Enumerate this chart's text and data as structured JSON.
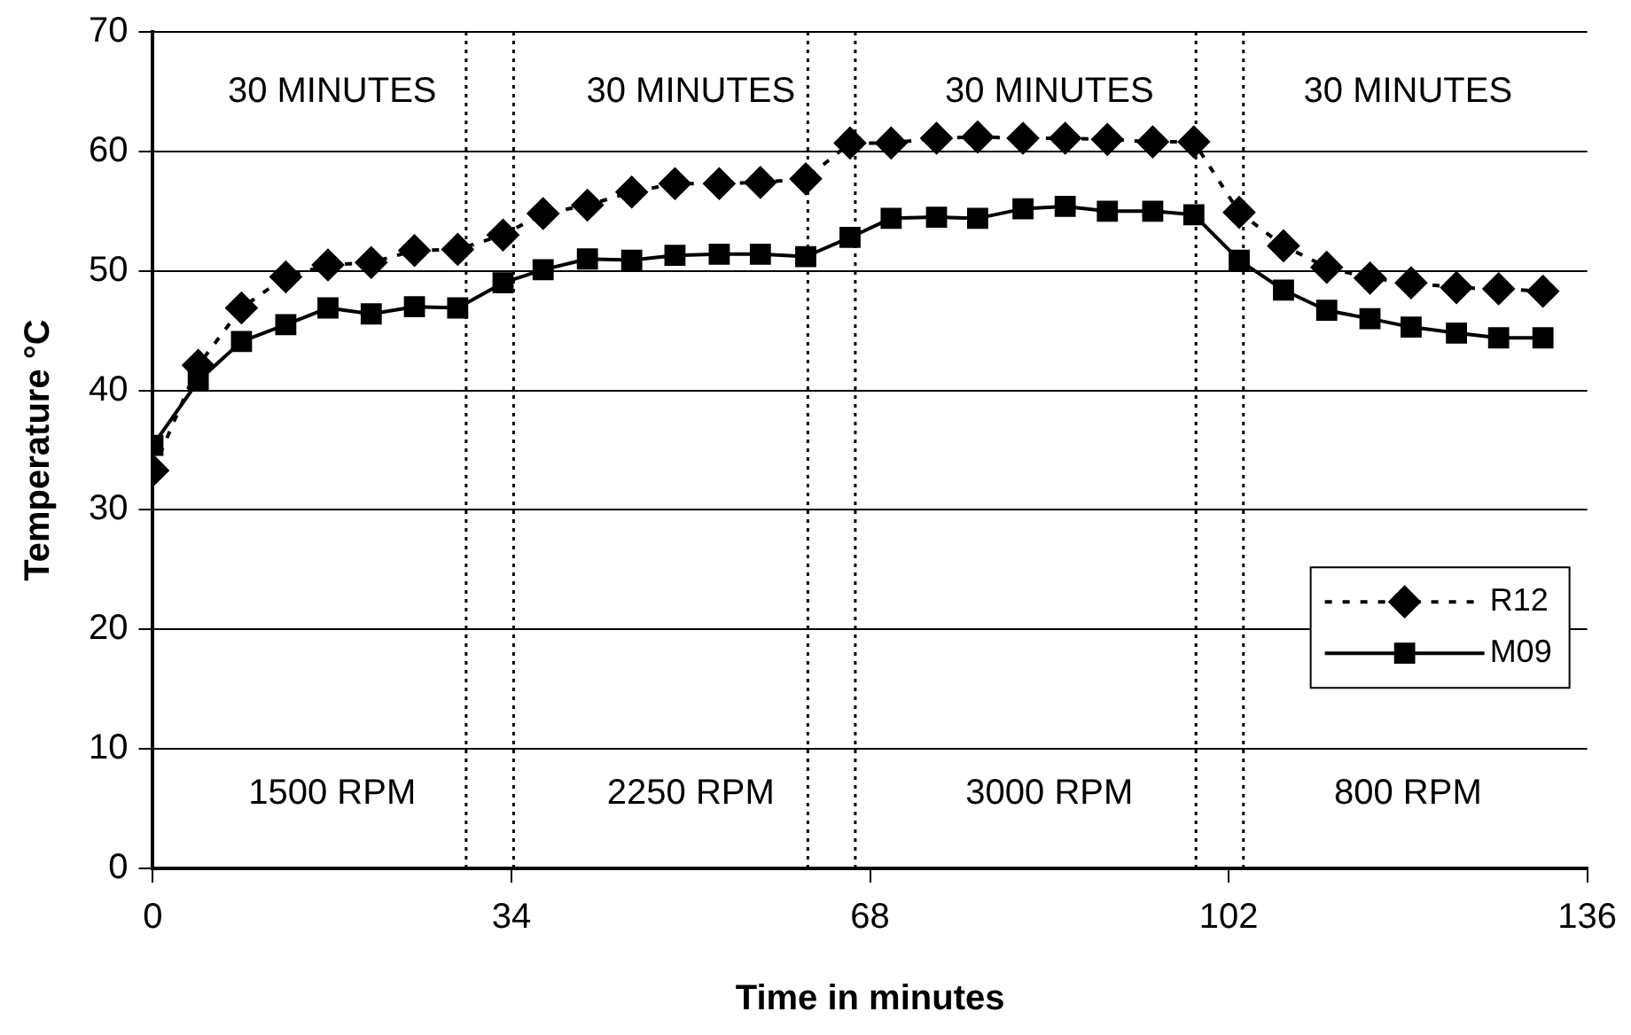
{
  "chart_data": {
    "type": "line",
    "xlabel": "Time in minutes",
    "ylabel": "Temperature °C",
    "xlim": [
      0,
      136
    ],
    "xticks": [
      0,
      34,
      68,
      102,
      136
    ],
    "ylim": [
      0,
      70
    ],
    "yticks": [
      0,
      10,
      20,
      30,
      40,
      50,
      60,
      70
    ],
    "grid": "y",
    "legend": "right",
    "x": [
      0,
      4.3,
      8.4,
      12.6,
      16.6,
      20.7,
      24.8,
      28.9,
      33.2,
      37.0,
      41.2,
      45.4,
      49.5,
      53.7,
      57.6,
      61.9,
      66.1,
      70.0,
      74.3,
      78.2,
      82.5,
      86.5,
      90.5,
      94.8,
      98.7,
      103.0,
      107.2,
      111.3,
      115.4,
      119.3,
      123.6,
      127.6,
      131.8
    ],
    "series": [
      {
        "name": "R12",
        "color": "#000000",
        "marker": "diamond",
        "line_style": "dashed",
        "values": [
          33.3,
          42.1,
          46.9,
          49.5,
          50.5,
          50.7,
          51.7,
          51.8,
          53.0,
          54.8,
          55.5,
          56.6,
          57.3,
          57.3,
          57.4,
          57.7,
          60.7,
          60.7,
          61.1,
          61.2,
          61.1,
          61.1,
          61.0,
          60.8,
          60.8,
          54.9,
          52.1,
          50.3,
          49.4,
          49.0,
          48.6,
          48.5,
          48.3
        ]
      },
      {
        "name": "M09",
        "color": "#000000",
        "marker": "square",
        "line_style": "solid",
        "values": [
          35.4,
          40.8,
          44.1,
          45.5,
          46.9,
          46.4,
          47.0,
          46.9,
          49.0,
          50.1,
          51.0,
          50.9,
          51.3,
          51.4,
          51.4,
          51.2,
          52.8,
          54.4,
          54.5,
          54.4,
          55.2,
          55.4,
          55.0,
          55.0,
          54.7,
          50.9,
          48.4,
          46.7,
          46.0,
          45.3,
          44.8,
          44.4,
          44.4
        ]
      }
    ],
    "ref_lines": [
      {
        "axis": "x",
        "value": 29.7,
        "color": "#000000",
        "line_style": "dotted"
      },
      {
        "axis": "x",
        "value": 34.2,
        "color": "#000000",
        "line_style": "dotted"
      },
      {
        "axis": "x",
        "value": 62.1,
        "color": "#000000",
        "line_style": "dotted"
      },
      {
        "axis": "x",
        "value": 66.6,
        "color": "#000000",
        "line_style": "dotted"
      },
      {
        "axis": "x",
        "value": 98.9,
        "color": "#000000",
        "line_style": "dotted"
      },
      {
        "axis": "x",
        "value": 103.4,
        "color": "#000000",
        "line_style": "dotted"
      }
    ],
    "annotations": [
      "30 MINUTES",
      "30 MINUTES",
      "30 MINUTES",
      "30 MINUTES",
      "1500 RPM",
      "2250 RPM",
      "3000 RPM",
      "800 RPM"
    ]
  }
}
